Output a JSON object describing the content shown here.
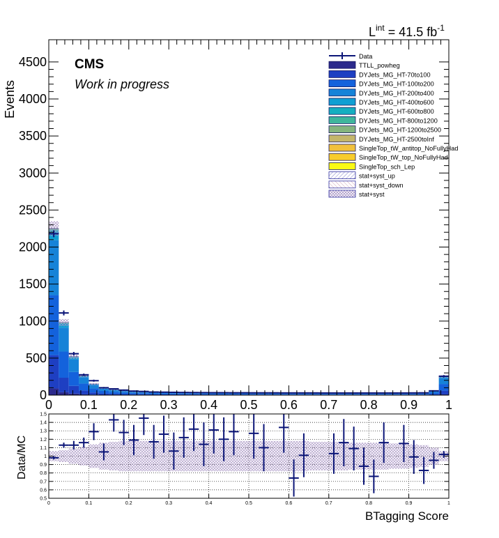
{
  "lumi": {
    "text": "L",
    "sup": "int",
    "value": " = 41.5 fb",
    "unit_sup": "-1"
  },
  "cms_label": "CMS",
  "wip_label": "Work in progress",
  "colors": {
    "data": "#0b1577",
    "TTLL_powheg": "#2c2a8c",
    "DY70": "#1e3fc2",
    "DY100": "#1462dc",
    "DY200": "#1683d8",
    "DY400": "#0f9fd3",
    "DY600": "#15afc0",
    "DY800": "#3fb69c",
    "DY1200": "#84b47e",
    "DY2500": "#c4b66a",
    "ST_anti": "#f1c13c",
    "ST_top": "#f8cc2c",
    "ST_sch": "#fafa14",
    "band_up": "#8a8ad0",
    "band_down": "#d8b0c0",
    "band": "#b49ec8"
  },
  "legend": [
    {
      "label": "Data",
      "kind": "marker",
      "color_key": "data"
    },
    {
      "label": "TTLL_powheg",
      "kind": "box",
      "color_key": "TTLL_powheg"
    },
    {
      "label": "DYJets_MG_HT-70to100",
      "kind": "box",
      "color_key": "DY70"
    },
    {
      "label": "DYJets_MG_HT-100to200",
      "kind": "box",
      "color_key": "DY100"
    },
    {
      "label": "DYJets_MG_HT-200to400",
      "kind": "box",
      "color_key": "DY200"
    },
    {
      "label": "DYJets_MG_HT-400to600",
      "kind": "box",
      "color_key": "DY400"
    },
    {
      "label": "DYJets_MG_HT-600to800",
      "kind": "box",
      "color_key": "DY600"
    },
    {
      "label": "DYJets_MG_HT-800to1200",
      "kind": "box",
      "color_key": "DY800"
    },
    {
      "label": "DYJets_MG_HT-1200to2500",
      "kind": "box",
      "color_key": "DY1200"
    },
    {
      "label": "DYJets_MG_HT-2500toInf",
      "kind": "box",
      "color_key": "DY2500"
    },
    {
      "label": "SingleTop_tW_antitop_NoFullyHad",
      "kind": "box",
      "color_key": "ST_anti"
    },
    {
      "label": "SingleTop_tW_top_NoFullyHad",
      "kind": "box",
      "color_key": "ST_top"
    },
    {
      "label": "SingleTop_sch_Lep",
      "kind": "box",
      "color_key": "ST_sch"
    },
    {
      "label": "stat+syst_up",
      "kind": "hatch",
      "color_key": "band_up"
    },
    {
      "label": "stat+syst_down",
      "kind": "hatch",
      "color_key": "band_down"
    },
    {
      "label": "stat+syst",
      "kind": "hatch",
      "color_key": "band"
    }
  ],
  "chart_data": [
    {
      "type": "bar",
      "subtype": "stacked-histogram",
      "title": "",
      "xlabel": "BTagging Score",
      "ylabel": "Events",
      "xlim": [
        0,
        1
      ],
      "ylim": [
        0,
        4800
      ],
      "x_ticks": [
        0,
        0.1,
        0.2,
        0.3,
        0.4,
        0.5,
        0.6,
        0.7,
        0.8,
        0.9,
        1
      ],
      "x_tick_labels": [
        "0",
        "0.1",
        "0.2",
        "0.3",
        "0.4",
        "0.5",
        "0.6",
        "0.7",
        "0.8",
        "0.9",
        "1"
      ],
      "y_ticks": [
        0,
        500,
        1000,
        1500,
        2000,
        2500,
        3000,
        3500,
        4000,
        4500
      ],
      "y_tick_labels": [
        "0",
        "500",
        "1000",
        "1500",
        "2000",
        "2500",
        "3000",
        "3500",
        "4000",
        "4500"
      ],
      "bin_edges_step": 0.025,
      "mc_total": [
        2250,
        980,
        520,
        260,
        150,
        95,
        75,
        60,
        50,
        45,
        40,
        38,
        36,
        35,
        34,
        33,
        32,
        32,
        31,
        31,
        30,
        30,
        30,
        29,
        29,
        29,
        29,
        28,
        28,
        28,
        28,
        28,
        28,
        28,
        28,
        28,
        29,
        30,
        55,
        250
      ],
      "data": [
        2180,
        1110,
        560,
        275,
        195,
        100,
        85,
        68,
        55,
        50,
        42,
        40,
        38,
        36,
        35,
        34,
        33,
        33,
        32,
        32,
        31,
        31,
        31,
        30,
        30,
        30,
        30,
        29,
        29,
        29,
        29,
        29,
        29,
        29,
        29,
        29,
        30,
        31,
        58,
        255
      ],
      "band_rel_unc": 0.04,
      "component_shares": [
        {
          "key": "TTLL_powheg",
          "share": 0.04
        },
        {
          "key": "DY70",
          "share": 0.2
        },
        {
          "key": "DY100",
          "share": 0.36
        },
        {
          "key": "DY200",
          "share": 0.33
        },
        {
          "key": "DY400",
          "share": 0.05
        },
        {
          "key": "DY600",
          "share": 0.01
        },
        {
          "key": "DY800",
          "share": 0.005
        },
        {
          "key": "DY1200",
          "share": 0.003
        },
        {
          "key": "DY2500",
          "share": 0.002
        }
      ]
    },
    {
      "type": "scatter",
      "subtype": "ratio",
      "xlabel": "BTagging Score",
      "ylabel": "Data/MC",
      "xlim": [
        0,
        1
      ],
      "ylim": [
        0.5,
        1.5
      ],
      "x_ticks": [
        0,
        0.1,
        0.2,
        0.3,
        0.4,
        0.5,
        0.6,
        0.7,
        0.8,
        0.9,
        1
      ],
      "x_tick_labels": [
        "0",
        "0.1",
        "0.2",
        "0.3",
        "0.4",
        "0.5",
        "0.6",
        "0.7",
        "0.8",
        "0.9",
        "1"
      ],
      "y_ticks": [
        0.5,
        0.6,
        0.7,
        0.8,
        0.9,
        1.0,
        1.1,
        1.2,
        1.3,
        1.4,
        1.5
      ],
      "y_tick_labels": [
        "0.5",
        "0.6",
        "0.7",
        "0.8",
        "0.9",
        "1",
        "1.1",
        "1.2",
        "1.3",
        "1.4",
        "1.5"
      ],
      "points": [
        {
          "x": 0.0125,
          "y": 0.98,
          "err": 0.02
        },
        {
          "x": 0.0375,
          "y": 1.13,
          "err": 0.03
        },
        {
          "x": 0.0625,
          "y": 1.13,
          "err": 0.05
        },
        {
          "x": 0.0875,
          "y": 1.16,
          "err": 0.06
        },
        {
          "x": 0.1125,
          "y": 1.29,
          "err": 0.1
        },
        {
          "x": 0.1375,
          "y": 1.05,
          "err": 0.1
        },
        {
          "x": 0.1625,
          "y": 1.43,
          "err": 0.14
        },
        {
          "x": 0.1875,
          "y": 1.28,
          "err": 0.15
        },
        {
          "x": 0.2125,
          "y": 1.19,
          "err": 0.18
        },
        {
          "x": 0.2375,
          "y": 1.45,
          "err": 0.2
        },
        {
          "x": 0.2625,
          "y": 1.17,
          "err": 0.2
        },
        {
          "x": 0.2875,
          "y": 1.26,
          "err": 0.22
        },
        {
          "x": 0.3125,
          "y": 1.06,
          "err": 0.22
        },
        {
          "x": 0.3375,
          "y": 1.22,
          "err": 0.24
        },
        {
          "x": 0.3625,
          "y": 1.32,
          "err": 0.26
        },
        {
          "x": 0.3875,
          "y": 1.14,
          "err": 0.26
        },
        {
          "x": 0.4125,
          "y": 1.31,
          "err": 0.28
        },
        {
          "x": 0.4375,
          "y": 1.2,
          "err": 0.26
        },
        {
          "x": 0.4625,
          "y": 1.29,
          "err": 0.28
        },
        {
          "x": 0.5125,
          "y": 1.27,
          "err": 0.3
        },
        {
          "x": 0.5375,
          "y": 1.1,
          "err": 0.28
        },
        {
          "x": 0.5875,
          "y": 1.34,
          "err": 0.3
        },
        {
          "x": 0.6125,
          "y": 0.74,
          "err": 0.22
        },
        {
          "x": 0.6375,
          "y": 1.01,
          "err": 0.26
        },
        {
          "x": 0.7125,
          "y": 1.03,
          "err": 0.24
        },
        {
          "x": 0.7375,
          "y": 1.16,
          "err": 0.28
        },
        {
          "x": 0.7625,
          "y": 1.09,
          "err": 0.26
        },
        {
          "x": 0.7875,
          "y": 0.88,
          "err": 0.22
        },
        {
          "x": 0.8125,
          "y": 0.76,
          "err": 0.2
        },
        {
          "x": 0.8375,
          "y": 1.16,
          "err": 0.24
        },
        {
          "x": 0.8875,
          "y": 1.15,
          "err": 0.22
        },
        {
          "x": 0.9125,
          "y": 0.99,
          "err": 0.2
        },
        {
          "x": 0.9375,
          "y": 0.83,
          "err": 0.16
        },
        {
          "x": 0.9625,
          "y": 0.95,
          "err": 0.1
        },
        {
          "x": 0.9875,
          "y": 1.02,
          "err": 0.04
        }
      ],
      "band": [
        0.06,
        0.07,
        0.09,
        0.11,
        0.14,
        0.16,
        0.17,
        0.18,
        0.18,
        0.18,
        0.18,
        0.18,
        0.18,
        0.18,
        0.18,
        0.18,
        0.18,
        0.18,
        0.18,
        0.18,
        0.18,
        0.18,
        0.18,
        0.18,
        0.18,
        0.18,
        0.17,
        0.17,
        0.17,
        0.17,
        0.16,
        0.16,
        0.16,
        0.16,
        0.15,
        0.15,
        0.14,
        0.13,
        0.1,
        0.06
      ]
    }
  ]
}
